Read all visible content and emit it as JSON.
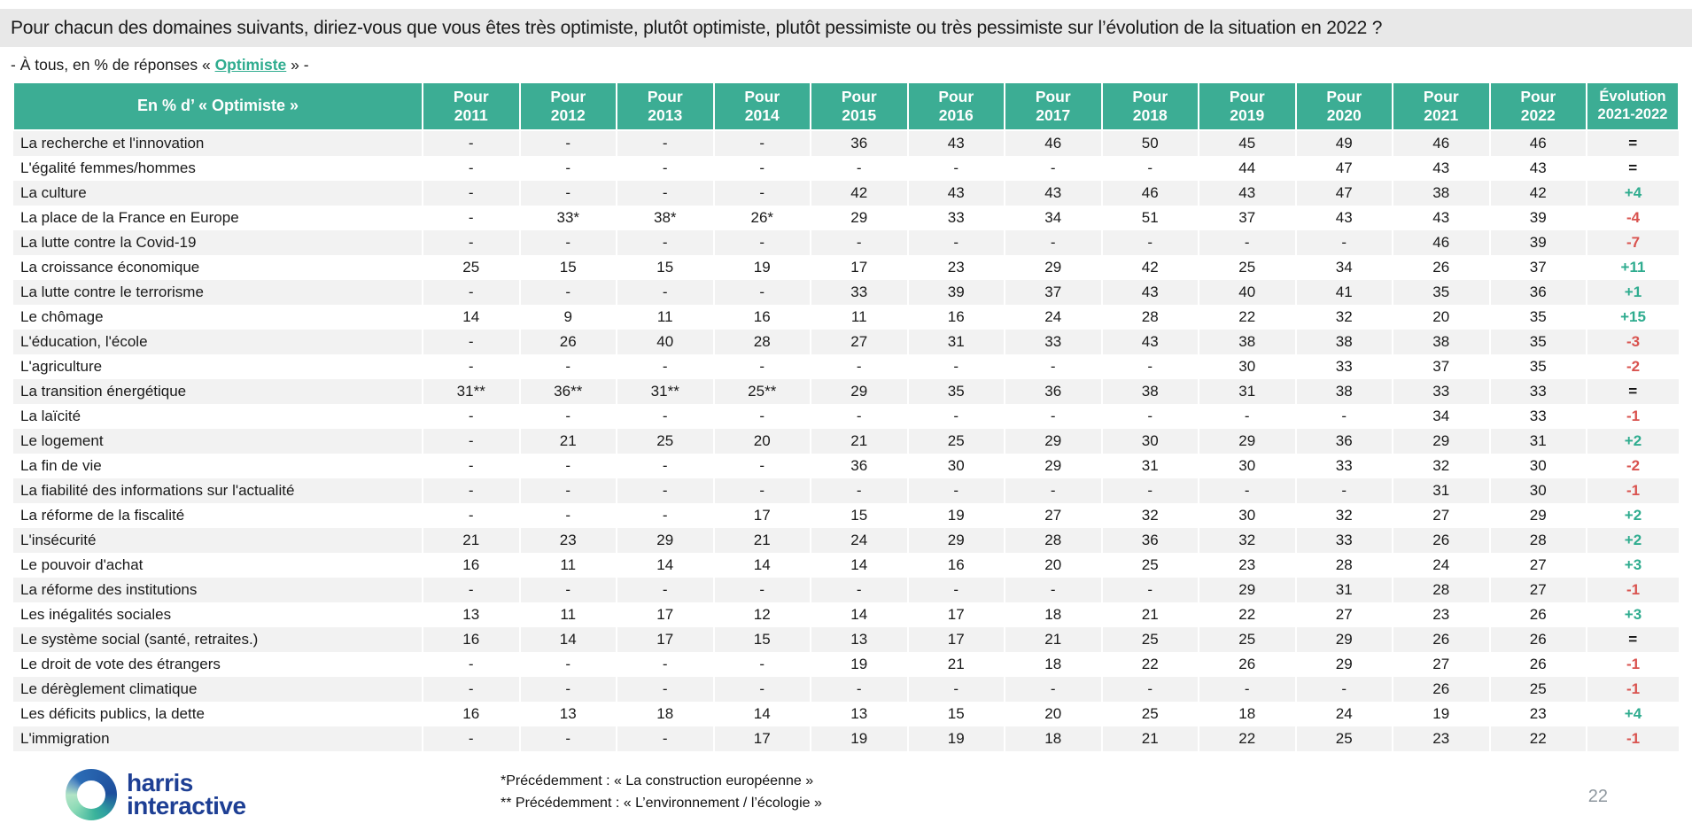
{
  "header": {
    "title": "Pour chacun des domaines suivants, diriez-vous que vous êtes très optimiste, plutôt optimiste, plutôt pessimiste ou très pessimiste sur l’évolution de la situation en 2022 ?"
  },
  "subtitle": {
    "prefix": "- À tous, en % de réponses « ",
    "highlight": "Optimiste",
    "suffix": " » -"
  },
  "colors": {
    "header_bg": "#3cad94",
    "positive": "#2fac8f",
    "negative": "#d9534f",
    "title_bar_bg": "#e8e8e8",
    "alt_row_bg": "#f2f2f2",
    "logo_blue": "#1e3f94"
  },
  "chart_data": {
    "type": "table",
    "title": "En % d’ « Optimiste » par domaine, 2011-2022",
    "corner_label": "En % d’ « Optimiste »",
    "year_prefix": "Pour",
    "years": [
      "2011",
      "2012",
      "2013",
      "2014",
      "2015",
      "2016",
      "2017",
      "2018",
      "2019",
      "2020",
      "2021",
      "2022"
    ],
    "evolution_header": {
      "line1": "Évolution",
      "line2": "2021-2022"
    },
    "rows": [
      {
        "label": "La recherche et l'innovation",
        "values": [
          "-",
          "-",
          "-",
          "-",
          "36",
          "43",
          "46",
          "50",
          "45",
          "49",
          "46",
          "46"
        ],
        "evolution": "="
      },
      {
        "label": "L'égalité femmes/hommes",
        "values": [
          "-",
          "-",
          "-",
          "-",
          "-",
          "-",
          "-",
          "-",
          "44",
          "47",
          "43",
          "43"
        ],
        "evolution": "="
      },
      {
        "label": "La culture",
        "values": [
          "-",
          "-",
          "-",
          "-",
          "42",
          "43",
          "43",
          "46",
          "43",
          "47",
          "38",
          "42"
        ],
        "evolution": "+4"
      },
      {
        "label": "La place de la France en Europe",
        "values": [
          "-",
          "33*",
          "38*",
          "26*",
          "29",
          "33",
          "34",
          "51",
          "37",
          "43",
          "43",
          "39"
        ],
        "evolution": "-4"
      },
      {
        "label": "La lutte contre la Covid-19",
        "values": [
          "-",
          "-",
          "-",
          "-",
          "-",
          "-",
          "-",
          "-",
          "-",
          "-",
          "46",
          "39"
        ],
        "evolution": "-7"
      },
      {
        "label": "La croissance économique",
        "values": [
          "25",
          "15",
          "15",
          "19",
          "17",
          "23",
          "29",
          "42",
          "25",
          "34",
          "26",
          "37"
        ],
        "evolution": "+11"
      },
      {
        "label": "La lutte contre le terrorisme",
        "values": [
          "-",
          "-",
          "-",
          "-",
          "33",
          "39",
          "37",
          "43",
          "40",
          "41",
          "35",
          "36"
        ],
        "evolution": "+1"
      },
      {
        "label": "Le chômage",
        "values": [
          "14",
          "9",
          "11",
          "16",
          "11",
          "16",
          "24",
          "28",
          "22",
          "32",
          "20",
          "35"
        ],
        "evolution": "+15"
      },
      {
        "label": "L'éducation, l'école",
        "values": [
          "-",
          "26",
          "40",
          "28",
          "27",
          "31",
          "33",
          "43",
          "38",
          "38",
          "38",
          "35"
        ],
        "evolution": "-3"
      },
      {
        "label": "L'agriculture",
        "values": [
          "-",
          "-",
          "-",
          "-",
          "-",
          "-",
          "-",
          "-",
          "30",
          "33",
          "37",
          "35"
        ],
        "evolution": "-2"
      },
      {
        "label": "La transition énergétique",
        "values": [
          "31**",
          "36**",
          "31**",
          "25**",
          "29",
          "35",
          "36",
          "38",
          "31",
          "38",
          "33",
          "33"
        ],
        "evolution": "="
      },
      {
        "label": "La laïcité",
        "values": [
          "-",
          "-",
          "-",
          "-",
          "-",
          "-",
          "-",
          "-",
          "-",
          "-",
          "34",
          "33"
        ],
        "evolution": "-1"
      },
      {
        "label": "Le logement",
        "values": [
          "-",
          "21",
          "25",
          "20",
          "21",
          "25",
          "29",
          "30",
          "29",
          "36",
          "29",
          "31"
        ],
        "evolution": "+2"
      },
      {
        "label": "La fin de vie",
        "values": [
          "-",
          "-",
          "-",
          "-",
          "36",
          "30",
          "29",
          "31",
          "30",
          "33",
          "32",
          "30"
        ],
        "evolution": "-2"
      },
      {
        "label": "La fiabilité des informations sur l'actualité",
        "values": [
          "-",
          "-",
          "-",
          "-",
          "-",
          "-",
          "-",
          "-",
          "-",
          "-",
          "31",
          "30"
        ],
        "evolution": "-1"
      },
      {
        "label": "La réforme de la fiscalité",
        "values": [
          "-",
          "-",
          "-",
          "17",
          "15",
          "19",
          "27",
          "32",
          "30",
          "32",
          "27",
          "29"
        ],
        "evolution": "+2"
      },
      {
        "label": "L'insécurité",
        "values": [
          "21",
          "23",
          "29",
          "21",
          "24",
          "29",
          "28",
          "36",
          "32",
          "33",
          "26",
          "28"
        ],
        "evolution": "+2"
      },
      {
        "label": "Le pouvoir d'achat",
        "values": [
          "16",
          "11",
          "14",
          "14",
          "14",
          "16",
          "20",
          "25",
          "23",
          "28",
          "24",
          "27"
        ],
        "evolution": "+3"
      },
      {
        "label": "La réforme des institutions",
        "values": [
          "-",
          "-",
          "-",
          "-",
          "-",
          "-",
          "-",
          "-",
          "29",
          "31",
          "28",
          "27"
        ],
        "evolution": "-1"
      },
      {
        "label": "Les inégalités sociales",
        "values": [
          "13",
          "11",
          "17",
          "12",
          "14",
          "17",
          "18",
          "21",
          "22",
          "27",
          "23",
          "26"
        ],
        "evolution": "+3"
      },
      {
        "label": "Le système social (santé, retraites.)",
        "values": [
          "16",
          "14",
          "17",
          "15",
          "13",
          "17",
          "21",
          "25",
          "25",
          "29",
          "26",
          "26"
        ],
        "evolution": "="
      },
      {
        "label": "Le droit de vote des étrangers",
        "values": [
          "-",
          "-",
          "-",
          "-",
          "19",
          "21",
          "18",
          "22",
          "26",
          "29",
          "27",
          "26"
        ],
        "evolution": "-1"
      },
      {
        "label": "Le dérèglement climatique",
        "values": [
          "-",
          "-",
          "-",
          "-",
          "-",
          "-",
          "-",
          "-",
          "-",
          "-",
          "26",
          "25"
        ],
        "evolution": "-1"
      },
      {
        "label": "Les déficits publics, la dette",
        "values": [
          "16",
          "13",
          "18",
          "14",
          "13",
          "15",
          "20",
          "25",
          "18",
          "24",
          "19",
          "23"
        ],
        "evolution": "+4"
      },
      {
        "label": "L'immigration",
        "values": [
          "-",
          "-",
          "-",
          "17",
          "19",
          "19",
          "18",
          "21",
          "22",
          "25",
          "23",
          "22"
        ],
        "evolution": "-1"
      }
    ]
  },
  "footer": {
    "footnote1": "*Précédemment : « La construction européenne »",
    "footnote2": "** Précédemment : « L’environnement / l’écologie »",
    "page_number": "22",
    "logo": {
      "line1": "harris",
      "line2": "interactive"
    }
  }
}
